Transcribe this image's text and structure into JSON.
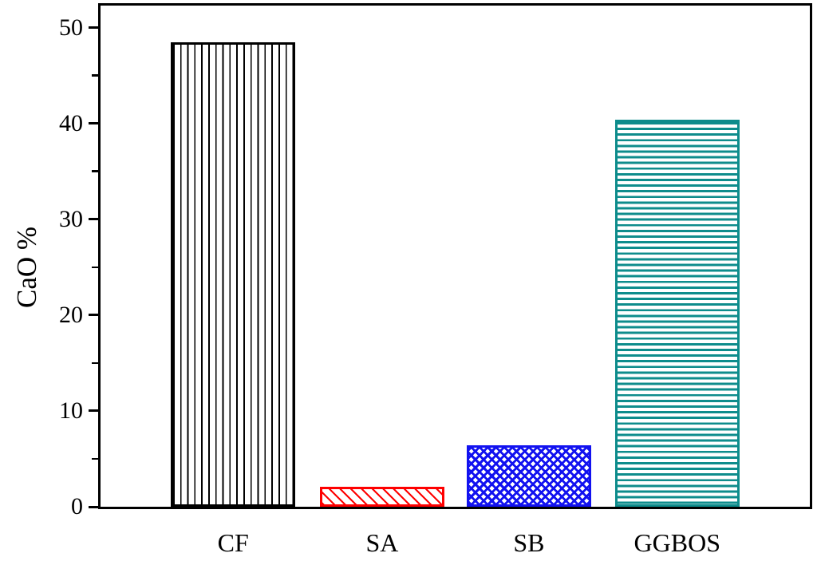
{
  "chart_data": {
    "type": "bar",
    "title": "",
    "xlabel": "",
    "ylabel": "CaO %",
    "categories": [
      "CF",
      "SA",
      "SB",
      "GGBOS"
    ],
    "values": [
      48.5,
      2.1,
      6.4,
      40.4
    ],
    "bar_colors": [
      "#000000",
      "#fe0000",
      "#1212f0",
      "#0e8c8c"
    ],
    "bar_patterns": [
      "vertical-lines",
      "diagonal-lines",
      "crosshatch",
      "horizontal-lines"
    ],
    "ylim": [
      0,
      52.3
    ],
    "yticks": [
      0,
      10,
      20,
      30,
      40,
      50
    ],
    "yticks_minor": [
      5,
      15,
      25,
      35,
      45
    ],
    "grid": false,
    "legend": "none",
    "frame": "full-box",
    "background_color": "#ffffff",
    "axis_color": "#000000"
  }
}
